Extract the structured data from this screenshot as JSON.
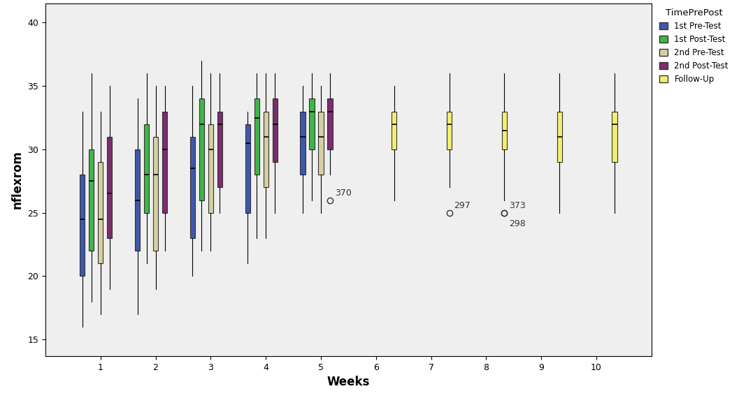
{
  "chart_data": {
    "type": "boxplot",
    "x_label": "Weeks",
    "y_label": "nflexrom",
    "x": [
      1,
      2,
      3,
      4,
      5,
      6,
      7,
      8,
      9,
      10
    ],
    "xlim": [
      0,
      11
    ],
    "xticks": [
      1,
      2,
      3,
      4,
      5,
      6,
      7,
      8,
      9,
      10
    ],
    "ylim": [
      13.7,
      41.5
    ],
    "yticks": [
      15,
      20,
      25,
      30,
      35,
      40
    ],
    "grid": false,
    "legend": "right",
    "legend_title": "TimePrePost",
    "series": [
      {
        "name": "1st Pre-Test",
        "color": "#3e58ac",
        "values": [
          {
            "whislo": 16,
            "q1": 20,
            "med": 24.5,
            "q3": 28,
            "whishi": 33,
            "fliers": []
          },
          {
            "whislo": 17,
            "q1": 22,
            "med": 26,
            "q3": 30,
            "whishi": 34,
            "fliers": []
          },
          {
            "whislo": 20,
            "q1": 23,
            "med": 28.5,
            "q3": 31,
            "whishi": 35,
            "fliers": []
          },
          {
            "whislo": 21,
            "q1": 25,
            "med": 30.5,
            "q3": 32,
            "whishi": 33,
            "fliers": []
          },
          {
            "whislo": 25,
            "q1": 28,
            "med": 31,
            "q3": 33,
            "whishi": 35,
            "fliers": []
          },
          null,
          null,
          null,
          null,
          null
        ]
      },
      {
        "name": "1st Post-Test",
        "color": "#3fb54a",
        "values": [
          {
            "whislo": 18,
            "q1": 22,
            "med": 27.5,
            "q3": 30,
            "whishi": 36,
            "fliers": []
          },
          {
            "whislo": 21,
            "q1": 25,
            "med": 28,
            "q3": 32,
            "whishi": 36,
            "fliers": []
          },
          {
            "whislo": 22,
            "q1": 26,
            "med": 32,
            "q3": 34,
            "whishi": 37,
            "fliers": []
          },
          {
            "whislo": 23,
            "q1": 28,
            "med": 32.5,
            "q3": 34,
            "whishi": 36,
            "fliers": []
          },
          {
            "whislo": 26,
            "q1": 30,
            "med": 33,
            "q3": 34,
            "whishi": 36,
            "fliers": []
          },
          null,
          null,
          null,
          null,
          null
        ]
      },
      {
        "name": "2nd Pre-Test",
        "color": "#d6cfa0",
        "values": [
          {
            "whislo": 17,
            "q1": 21,
            "med": 24.5,
            "q3": 29,
            "whishi": 33,
            "fliers": []
          },
          {
            "whislo": 19,
            "q1": 22,
            "med": 28,
            "q3": 31,
            "whishi": 35,
            "fliers": []
          },
          {
            "whislo": 22,
            "q1": 25,
            "med": 30,
            "q3": 32,
            "whishi": 36,
            "fliers": []
          },
          {
            "whislo": 23,
            "q1": 27,
            "med": 31,
            "q3": 33,
            "whishi": 36,
            "fliers": []
          },
          {
            "whislo": 25,
            "q1": 28,
            "med": 31,
            "q3": 33,
            "whishi": 35,
            "fliers": []
          },
          null,
          null,
          null,
          null,
          null
        ]
      },
      {
        "name": "2nd Post-Test",
        "color": "#7b2d6e",
        "values": [
          {
            "whislo": 19,
            "q1": 23,
            "med": 26.5,
            "q3": 31,
            "whishi": 35,
            "fliers": []
          },
          {
            "whislo": 22,
            "q1": 25,
            "med": 30,
            "q3": 33,
            "whishi": 35,
            "fliers": []
          },
          {
            "whislo": 25,
            "q1": 27,
            "med": 32,
            "q3": 33,
            "whishi": 36,
            "fliers": []
          },
          {
            "whislo": 25,
            "q1": 29,
            "med": 32,
            "q3": 34,
            "whishi": 36,
            "fliers": []
          },
          {
            "whislo": 28,
            "q1": 30,
            "med": 33,
            "q3": 34,
            "whishi": 36,
            "fliers": [
              {
                "value": 26,
                "label": "370"
              }
            ]
          },
          null,
          null,
          null,
          null,
          null
        ]
      },
      {
        "name": "Follow-Up",
        "color": "#f4ef6e",
        "values": [
          null,
          null,
          null,
          null,
          null,
          {
            "whislo": 26,
            "q1": 30,
            "med": 32,
            "q3": 33,
            "whishi": 35,
            "fliers": []
          },
          {
            "whislo": 27,
            "q1": 30,
            "med": 32,
            "q3": 33,
            "whishi": 36,
            "fliers": [
              {
                "value": 25,
                "label": "297"
              }
            ]
          },
          {
            "whislo": 26,
            "q1": 30,
            "med": 31.5,
            "q3": 33,
            "whishi": 36,
            "fliers": [
              {
                "value": 25,
                "label": "373"
              },
              {
                "value": 25,
                "label": "298"
              }
            ]
          },
          {
            "whislo": 25,
            "q1": 29,
            "med": 31,
            "q3": 33,
            "whishi": 36,
            "fliers": []
          },
          {
            "whislo": 25,
            "q1": 29,
            "med": 32,
            "q3": 33,
            "whishi": 36,
            "fliers": []
          }
        ]
      }
    ]
  }
}
